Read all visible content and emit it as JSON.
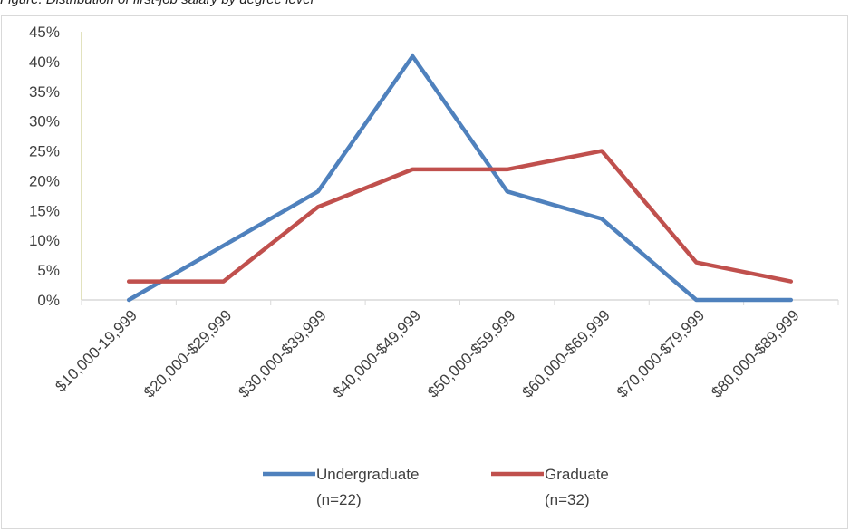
{
  "caption": "Figure. Distribution of first-job salary by degree level",
  "chart_data": {
    "type": "line",
    "categories": [
      "$10,000-19,999",
      "$20,000-$29,999",
      "$30,000-$39,999",
      "$40,000-$49,999",
      "$50,000-$59,999",
      "$60,000-$69,999",
      "$70,000-$79,999",
      "$80,000-$89,999"
    ],
    "y_ticks": [
      "0%",
      "5%",
      "10%",
      "15%",
      "20%",
      "25%",
      "30%",
      "35%",
      "40%",
      "45%"
    ],
    "ylim": [
      0,
      45
    ],
    "grid": false,
    "legend_position": "bottom",
    "series": [
      {
        "name": "Undergraduate",
        "name_line2": "(n=22)",
        "color": "#4f81bd",
        "values": [
          0,
          9.1,
          18.2,
          40.9,
          18.2,
          13.6,
          0,
          0
        ]
      },
      {
        "name": "Graduate",
        "name_line2": "(n=32)",
        "color": "#c0504d",
        "values": [
          3.1,
          3.1,
          15.6,
          21.9,
          21.9,
          25.0,
          6.3,
          3.1
        ]
      }
    ]
  }
}
